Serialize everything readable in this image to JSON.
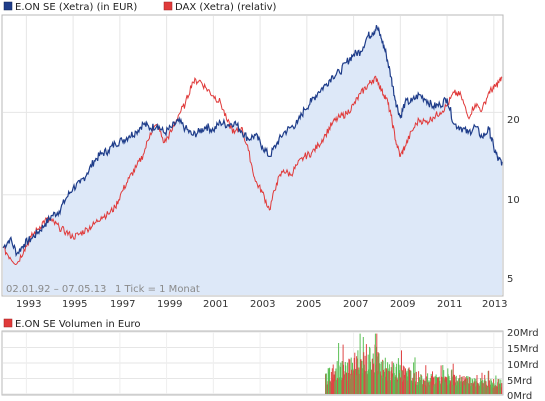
{
  "chart_data": [
    {
      "type": "line",
      "legend": [
        {
          "label": "E.ON SE (Xetra) (in EUR)",
          "color": "#1f3d8a"
        },
        {
          "label": "DAX (Xetra) (relativ)",
          "color": "#e03a3a"
        }
      ],
      "date_range_label": "02.01.92 – 07.05.13",
      "tick_label": "1 Tick = 1 Monat",
      "x_tick_labels": [
        "1993",
        "1995",
        "1997",
        "1999",
        "2001",
        "2003",
        "2005",
        "2007",
        "2009",
        "2011",
        "2013"
      ],
      "y_scale": "log",
      "y_tick_labels": [
        "5",
        "10",
        "20"
      ],
      "y_ticks": [
        5,
        10,
        20
      ],
      "ylim": [
        4.3,
        45
      ],
      "xlim": [
        1992.0,
        2013.35
      ],
      "area_fill": "#dde8f8",
      "series": [
        {
          "name": "E.ON SE (Xetra) (in EUR)",
          "color": "#1f3d8a",
          "x": [
            1992.0,
            1992.3,
            1992.6,
            1992.9,
            1993.2,
            1993.5,
            1993.8,
            1994.1,
            1994.4,
            1994.7,
            1995.0,
            1995.3,
            1995.6,
            1995.9,
            1996.2,
            1996.5,
            1996.8,
            1997.1,
            1997.4,
            1997.7,
            1998.0,
            1998.3,
            1998.6,
            1998.9,
            1999.2,
            1999.5,
            1999.8,
            2000.1,
            2000.4,
            2000.7,
            2001.0,
            2001.3,
            2001.6,
            2001.9,
            2002.2,
            2002.5,
            2002.8,
            2003.1,
            2003.4,
            2003.7,
            2004.0,
            2004.3,
            2004.6,
            2004.9,
            2005.2,
            2005.5,
            2005.8,
            2006.1,
            2006.4,
            2006.7,
            2007.0,
            2007.3,
            2007.6,
            2007.8,
            2008.0,
            2008.2,
            2008.4,
            2008.6,
            2008.8,
            2009.0,
            2009.2,
            2009.5,
            2009.8,
            2010.1,
            2010.4,
            2010.7,
            2011.0,
            2011.3,
            2011.6,
            2011.9,
            2012.2,
            2012.5,
            2012.8,
            2013.0,
            2013.2,
            2013.35
          ],
          "values": [
            6.4,
            6.9,
            6.1,
            6.6,
            6.9,
            7.3,
            7.8,
            8.4,
            8.7,
            9.7,
            10.6,
            11.0,
            12.0,
            13.3,
            14.1,
            14.5,
            15.4,
            15.8,
            16.4,
            17.0,
            18.2,
            17.5,
            18.0,
            16.8,
            17.6,
            18.6,
            17.5,
            16.5,
            17.0,
            17.8,
            17.2,
            18.4,
            18.0,
            18.4,
            17.1,
            16.0,
            16.5,
            15.0,
            13.8,
            15.3,
            16.8,
            17.6,
            18.3,
            20.5,
            22.0,
            23.8,
            25.2,
            27.2,
            28.0,
            30.5,
            32.6,
            33.4,
            38.0,
            39.0,
            41.0,
            37.0,
            32.5,
            27.0,
            22.0,
            19.2,
            21.7,
            22.0,
            23.2,
            22.3,
            21.0,
            21.3,
            22.5,
            18.1,
            17.6,
            16.8,
            17.8,
            16.2,
            17.4,
            14.8,
            13.4,
            13.2
          ]
        },
        {
          "name": "DAX (Xetra) (relativ)",
          "color": "#e03a3a",
          "x": [
            1992.0,
            1992.3,
            1992.6,
            1992.9,
            1993.2,
            1993.5,
            1993.8,
            1994.1,
            1994.4,
            1994.7,
            1995.0,
            1995.3,
            1995.6,
            1995.9,
            1996.2,
            1996.5,
            1996.8,
            1997.1,
            1997.4,
            1997.7,
            1998.0,
            1998.3,
            1998.6,
            1998.9,
            1999.2,
            1999.5,
            1999.8,
            2000.1,
            2000.4,
            2000.7,
            2001.0,
            2001.3,
            2001.6,
            2001.9,
            2002.2,
            2002.5,
            2002.8,
            2003.1,
            2003.4,
            2003.7,
            2004.0,
            2004.3,
            2004.6,
            2004.9,
            2005.2,
            2005.5,
            2005.8,
            2006.1,
            2006.4,
            2006.7,
            2007.0,
            2007.3,
            2007.6,
            2007.8,
            2008.0,
            2008.2,
            2008.4,
            2008.6,
            2008.8,
            2009.0,
            2009.2,
            2009.5,
            2009.8,
            2010.1,
            2010.4,
            2010.7,
            2011.0,
            2011.3,
            2011.6,
            2011.9,
            2012.2,
            2012.5,
            2012.8,
            2013.0,
            2013.2,
            2013.35
          ],
          "values": [
            6.4,
            5.9,
            5.6,
            6.3,
            7.0,
            7.5,
            8.1,
            8.0,
            7.6,
            7.3,
            7.0,
            7.2,
            7.5,
            7.8,
            8.3,
            8.5,
            9.0,
            10.3,
            11.5,
            12.6,
            14.0,
            16.8,
            18.0,
            15.5,
            17.0,
            19.5,
            21.5,
            25.8,
            26.2,
            24.5,
            23.0,
            21.8,
            18.5,
            16.8,
            17.6,
            14.5,
            11.2,
            10.2,
            8.8,
            11.0,
            12.3,
            11.8,
            12.9,
            13.8,
            14.2,
            15.2,
            16.6,
            18.3,
            19.2,
            19.8,
            21.3,
            23.4,
            25.1,
            26.2,
            26.6,
            24.0,
            22.6,
            19.5,
            15.8,
            13.8,
            15.0,
            17.1,
            18.8,
            18.4,
            19.2,
            20.0,
            21.2,
            23.6,
            23.0,
            19.2,
            21.4,
            20.4,
            23.8,
            24.5,
            25.7,
            26.8
          ]
        }
      ]
    },
    {
      "type": "bar",
      "legend": [
        {
          "label": "E.ON SE Volumen in Euro",
          "color": "#e03a3a"
        }
      ],
      "y_tick_labels": [
        "20Mrd",
        "15Mrd",
        "10Mrd",
        "5Mrd",
        "0Mrd"
      ],
      "y_ticks": [
        20,
        15,
        10,
        5,
        0
      ],
      "ylim": [
        0,
        20
      ],
      "unit": "Mrd",
      "period": [
        2005.8,
        2013.35
      ],
      "bar_colors": {
        "up": "#5bbf55",
        "down": "#e04545"
      },
      "volume_profile": [
        {
          "x": 2005.8,
          "v": 6.0
        },
        {
          "x": 2006.2,
          "v": 8.5
        },
        {
          "x": 2006.8,
          "v": 9.5
        },
        {
          "x": 2007.3,
          "v": 12.0
        },
        {
          "x": 2007.8,
          "v": 14.0
        },
        {
          "x": 2008.2,
          "v": 10.5
        },
        {
          "x": 2008.6,
          "v": 8.5
        },
        {
          "x": 2009.2,
          "v": 7.5
        },
        {
          "x": 2010.0,
          "v": 5.5
        },
        {
          "x": 2010.6,
          "v": 5.0
        },
        {
          "x": 2011.3,
          "v": 5.2
        },
        {
          "x": 2012.0,
          "v": 4.5
        },
        {
          "x": 2012.6,
          "v": 4.0
        },
        {
          "x": 2013.35,
          "v": 4.0
        }
      ]
    }
  ]
}
